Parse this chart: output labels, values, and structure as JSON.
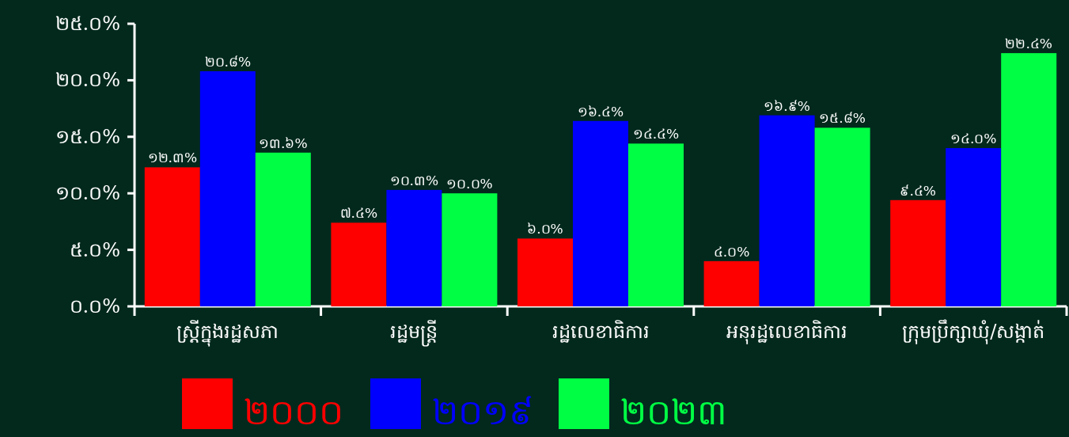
{
  "chart_data": {
    "type": "bar",
    "categories": [
      "ស្ត្រីក្នុងរដ្ឋសភា",
      "រដ្ឋមន្ត្រី",
      "រដ្ឋលេខាធិការ",
      "អនុរដ្ឋលេខាធិការ",
      "ក្រុមប្រឹក្សាឃុំ/សង្កាត់"
    ],
    "series": [
      {
        "name": "២០០០",
        "color": "#ff0000",
        "values": [
          12.3,
          7.4,
          6.0,
          4.0,
          9.4
        ],
        "value_labels": [
          "១២.៣%",
          "៧.៤%",
          "៦.០%",
          "៤.០%",
          "៩.៤%"
        ]
      },
      {
        "name": "២០១៩",
        "color": "#0000ff",
        "values": [
          20.8,
          10.3,
          16.4,
          16.9,
          14.0
        ],
        "value_labels": [
          "២០.៨%",
          "១០.៣%",
          "១៦.៤%",
          "១៦.៩%",
          "១៤.០%"
        ]
      },
      {
        "name": "២០២៣",
        "color": "#00ff44",
        "values": [
          13.6,
          10.0,
          14.4,
          15.8,
          22.4
        ],
        "value_labels": [
          "១៣.៦%",
          "១០.០%",
          "១៤.៤%",
          "១៥.៨%",
          "២២.៤%"
        ]
      }
    ],
    "ylim": [
      0,
      25
    ],
    "yticks": [
      {
        "value": 0,
        "label": "០.០%"
      },
      {
        "value": 5,
        "label": "៥.០%"
      },
      {
        "value": 10,
        "label": "១០.០%"
      },
      {
        "value": 15,
        "label": "១៥.០%"
      },
      {
        "value": 20,
        "label": "២០.០%"
      },
      {
        "value": 25,
        "label": "២៥.០%"
      }
    ],
    "grid": false,
    "legend": "bottom"
  }
}
